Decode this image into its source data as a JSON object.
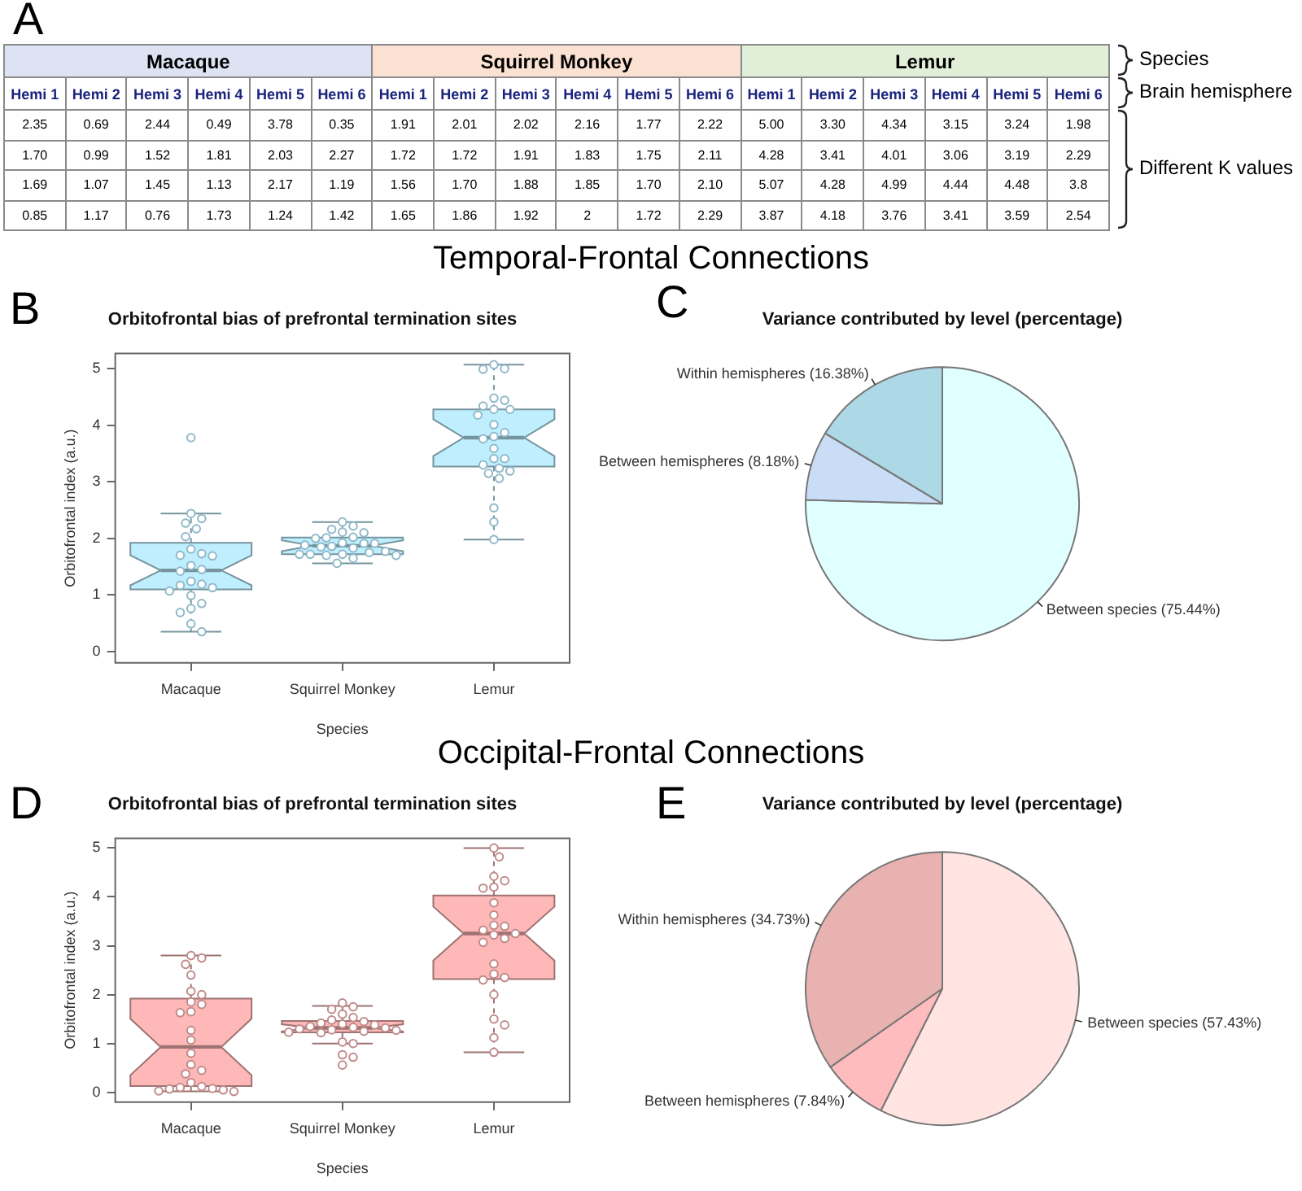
{
  "chart_data": [
    {
      "type": "other",
      "categories": [
        "Hemi 1",
        "Hemi 2",
        "Hemi 3",
        "Hemi 4",
        "Hemi 5",
        "Hemi 6",
        "Hemi 1",
        "Hemi 2",
        "Hemi 3",
        "Hemi 4",
        "Hemi 5",
        "Hemi 6",
        "Hemi 1",
        "Hemi 2",
        "Hemi 3",
        "Hemi 4",
        "Hemi 5",
        "Hemi 6"
      ],
      "cell_labels": [
        [
          "2.35",
          "0.69",
          "2.44",
          "0.49",
          "3.78",
          "0.35",
          "1.91",
          "2.01",
          "2.02",
          "2.16",
          "1.77",
          "2.22",
          "5.00",
          "3.30",
          "4.34",
          "3.15",
          "3.24",
          "1.98"
        ],
        [
          "1.70",
          "0.99",
          "1.52",
          "1.81",
          "2.03",
          "2.27",
          "1.72",
          "1.72",
          "1.91",
          "1.83",
          "1.75",
          "2.11",
          "4.28",
          "3.41",
          "4.01",
          "3.06",
          "3.19",
          "2.29"
        ],
        [
          "1.69",
          "1.07",
          "1.45",
          "1.13",
          "2.17",
          "1.19",
          "1.56",
          "1.70",
          "1.88",
          "1.85",
          "1.70",
          "2.10",
          "5.07",
          "4.28",
          "4.99",
          "4.44",
          "4.48",
          "3.8"
        ],
        [
          "0.85",
          "1.17",
          "0.76",
          "1.73",
          "1.24",
          "1.42",
          "1.65",
          "1.86",
          "1.92",
          "2",
          "1.72",
          "2.29",
          "3.87",
          "4.18",
          "3.76",
          "3.41",
          "3.59",
          "2.54"
        ]
      ],
      "colors": [
        "#dde3f3",
        "#fbe1d2",
        "#e1efd9"
      ],
      "annotations": [
        "A",
        "Macaque",
        "Squirrel Monkey",
        "Lemur",
        "Species",
        "Brain hemisphere",
        "Different K values"
      ]
    },
    {
      "type": "box",
      "title": "Orbitofrontal bias of prefrontal termination sites",
      "xlabel": "Species",
      "ylabel": "Orbitofrontal index (a.u.)",
      "categories": [
        "Macaque",
        "Squirrel Monkey",
        "Lemur"
      ],
      "ylim": [
        -0.2,
        5.27
      ],
      "yticks": [
        0,
        1,
        2,
        3,
        4,
        5
      ],
      "marker": "circle",
      "annotations": [
        "Temporal-Frontal Connections",
        "B"
      ],
      "series": [
        {
          "type": "box",
          "color": "#bfefff",
          "boxes": [
            {
              "low": 0.35,
              "q1": 1.1,
              "median": 1.435,
              "q3": 1.92,
              "high": 2.44
            },
            {
              "low": 1.56,
              "q1": 1.72,
              "median": 1.87,
              "q3": 2.015,
              "high": 2.29
            },
            {
              "low": 1.98,
              "q1": 3.27,
              "median": 3.78,
              "q3": 4.28,
              "high": 5.07
            }
          ]
        },
        {
          "type": "scatter",
          "color": "#8fb8c8",
          "x": [
            "Macaque",
            "Macaque",
            "Macaque",
            "Macaque",
            "Macaque",
            "Macaque",
            "Macaque",
            "Macaque",
            "Macaque",
            "Macaque",
            "Macaque",
            "Macaque",
            "Macaque",
            "Macaque",
            "Macaque",
            "Macaque",
            "Macaque",
            "Macaque",
            "Macaque",
            "Macaque",
            "Macaque",
            "Macaque",
            "Macaque",
            "Macaque",
            "Squirrel Monkey",
            "Squirrel Monkey",
            "Squirrel Monkey",
            "Squirrel Monkey",
            "Squirrel Monkey",
            "Squirrel Monkey",
            "Squirrel Monkey",
            "Squirrel Monkey",
            "Squirrel Monkey",
            "Squirrel Monkey",
            "Squirrel Monkey",
            "Squirrel Monkey",
            "Squirrel Monkey",
            "Squirrel Monkey",
            "Squirrel Monkey",
            "Squirrel Monkey",
            "Squirrel Monkey",
            "Squirrel Monkey",
            "Squirrel Monkey",
            "Squirrel Monkey",
            "Squirrel Monkey",
            "Squirrel Monkey",
            "Squirrel Monkey",
            "Squirrel Monkey",
            "Lemur",
            "Lemur",
            "Lemur",
            "Lemur",
            "Lemur",
            "Lemur",
            "Lemur",
            "Lemur",
            "Lemur",
            "Lemur",
            "Lemur",
            "Lemur",
            "Lemur",
            "Lemur",
            "Lemur",
            "Lemur",
            "Lemur",
            "Lemur",
            "Lemur",
            "Lemur",
            "Lemur",
            "Lemur",
            "Lemur",
            "Lemur"
          ],
          "values": [
            2.35,
            0.69,
            2.44,
            0.49,
            3.78,
            0.35,
            1.7,
            0.99,
            1.52,
            1.81,
            2.03,
            2.27,
            1.69,
            1.07,
            1.45,
            1.13,
            2.17,
            1.19,
            0.85,
            1.17,
            0.76,
            1.73,
            1.24,
            1.42,
            1.91,
            2.01,
            2.02,
            2.16,
            1.77,
            2.22,
            1.72,
            1.72,
            1.91,
            1.83,
            1.75,
            2.11,
            1.56,
            1.7,
            1.88,
            1.85,
            1.7,
            2.1,
            1.65,
            1.86,
            1.92,
            2,
            1.72,
            2.29,
            5.0,
            3.3,
            4.34,
            3.15,
            3.24,
            1.98,
            4.28,
            3.41,
            4.01,
            3.06,
            3.19,
            2.29,
            5.07,
            4.28,
            4.99,
            4.44,
            4.48,
            3.8,
            3.87,
            4.18,
            3.76,
            3.41,
            3.59,
            2.54
          ]
        }
      ]
    },
    {
      "type": "pie",
      "title": "Variance contributed by level (percentage)",
      "categories": [
        "Between species",
        "Between hemispheres",
        "Within hemispheres"
      ],
      "values": [
        75.44,
        8.18,
        16.38
      ],
      "value_labels": [
        "(75.44%)",
        "(8.18%)",
        "(16.38%)"
      ],
      "colors": [
        "#e0ffff",
        "#c9ddf7",
        "#add8e6"
      ],
      "annotations": [
        "C"
      ]
    },
    {
      "type": "box",
      "title": "Orbitofrontal bias of prefrontal termination sites",
      "xlabel": "Species",
      "ylabel": "Orbitofrontal index (a.u.)",
      "categories": [
        "Macaque",
        "Squirrel Monkey",
        "Lemur"
      ],
      "ylim": [
        -0.2,
        5.2
      ],
      "yticks": [
        0,
        1,
        2,
        3,
        4,
        5
      ],
      "marker": "circle",
      "annotations": [
        "Occipital-Frontal Connections",
        "D"
      ],
      "series": [
        {
          "type": "box",
          "color": "#ffb8b8",
          "boxes": [
            {
              "low": 0.02,
              "q1": 0.13,
              "median": 0.93,
              "q3": 1.92,
              "high": 2.8
            },
            {
              "low": 1.0,
              "q1": 1.23,
              "median": 1.32,
              "q3": 1.46,
              "high": 1.77
            },
            {
              "low": 0.82,
              "q1": 2.32,
              "median": 3.25,
              "q3": 4.03,
              "high": 5.0
            }
          ]
        },
        {
          "type": "scatter",
          "color": "#c08a8a",
          "x": [
            "Macaque",
            "Macaque",
            "Macaque",
            "Macaque",
            "Macaque",
            "Macaque",
            "Macaque",
            "Macaque",
            "Macaque",
            "Macaque",
            "Macaque",
            "Macaque",
            "Macaque",
            "Macaque",
            "Macaque",
            "Macaque",
            "Macaque",
            "Macaque",
            "Macaque",
            "Macaque",
            "Macaque",
            "Macaque",
            "Macaque",
            "Macaque",
            "Squirrel Monkey",
            "Squirrel Monkey",
            "Squirrel Monkey",
            "Squirrel Monkey",
            "Squirrel Monkey",
            "Squirrel Monkey",
            "Squirrel Monkey",
            "Squirrel Monkey",
            "Squirrel Monkey",
            "Squirrel Monkey",
            "Squirrel Monkey",
            "Squirrel Monkey",
            "Squirrel Monkey",
            "Squirrel Monkey",
            "Squirrel Monkey",
            "Squirrel Monkey",
            "Squirrel Monkey",
            "Squirrel Monkey",
            "Squirrel Monkey",
            "Squirrel Monkey",
            "Squirrel Monkey",
            "Squirrel Monkey",
            "Squirrel Monkey",
            "Squirrel Monkey",
            "Lemur",
            "Lemur",
            "Lemur",
            "Lemur",
            "Lemur",
            "Lemur",
            "Lemur",
            "Lemur",
            "Lemur",
            "Lemur",
            "Lemur",
            "Lemur",
            "Lemur",
            "Lemur",
            "Lemur",
            "Lemur",
            "Lemur",
            "Lemur",
            "Lemur",
            "Lemur",
            "Lemur",
            "Lemur",
            "Lemur",
            "Lemur"
          ],
          "values": [
            2.8,
            2.75,
            2.62,
            2.4,
            2.07,
            2.0,
            1.85,
            1.8,
            1.65,
            1.63,
            1.27,
            1.07,
            0.8,
            0.57,
            0.45,
            0.38,
            0.2,
            0.12,
            0.1,
            0.08,
            0.07,
            0.05,
            0.03,
            0.02,
            1.83,
            1.75,
            1.7,
            1.6,
            1.53,
            1.48,
            1.45,
            1.42,
            1.4,
            1.38,
            1.35,
            1.33,
            1.32,
            1.3,
            1.28,
            1.27,
            1.25,
            1.23,
            1.22,
            1.03,
            1.0,
            0.77,
            0.72,
            0.56,
            5.0,
            4.82,
            4.42,
            4.33,
            4.2,
            4.18,
            3.88,
            3.63,
            3.42,
            3.4,
            3.32,
            3.25,
            3.22,
            3.15,
            3.07,
            2.63,
            2.42,
            2.35,
            2.3,
            2.0,
            1.5,
            1.38,
            1.12,
            0.82
          ]
        }
      ]
    },
    {
      "type": "pie",
      "title": "Variance contributed by level (percentage)",
      "categories": [
        "Between species",
        "Between hemispheres",
        "Within hemispheres"
      ],
      "values": [
        57.43,
        7.84,
        34.73
      ],
      "value_labels": [
        "(57.43%)",
        "(7.84%)",
        "(34.73%)"
      ],
      "colors": [
        "#ffe4e1",
        "#ffbcbf",
        "#e8b2b0"
      ],
      "annotations": [
        "E"
      ]
    }
  ]
}
